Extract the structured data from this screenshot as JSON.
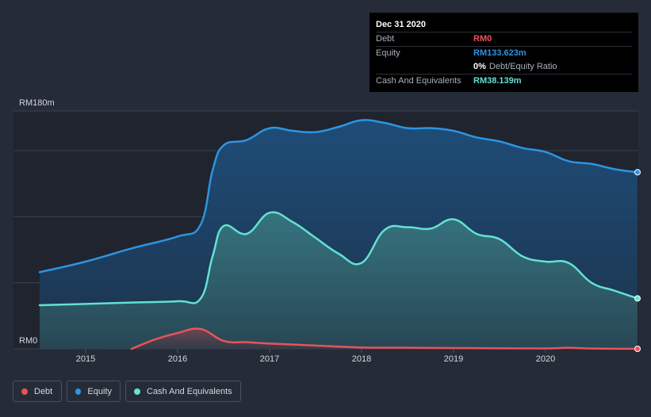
{
  "tooltip": {
    "date": "Dec 31 2020",
    "rows": [
      {
        "label": "Debt",
        "value": "RM0"
      },
      {
        "label": "Equity",
        "value": "RM133.623m"
      },
      {
        "label": "",
        "value": "0%",
        "suffix": "Debt/Equity Ratio"
      },
      {
        "label": "Cash And Equivalents",
        "value": "RM38.139m"
      }
    ]
  },
  "legend": {
    "items": [
      {
        "label": "Debt"
      },
      {
        "label": "Equity"
      },
      {
        "label": "Cash And Equivalents"
      }
    ]
  },
  "colors": {
    "debt": "#e8535a",
    "equity": "#2d94e2",
    "cash": "#63e1d3",
    "background": "#252b37",
    "grid": "#3a4150",
    "axis_text": "#d4d8df"
  },
  "chart_data": {
    "type": "area",
    "title": "",
    "xlabel": "",
    "ylabel": "",
    "y_top_label": "RM180m",
    "y_bottom_label": "RM0",
    "ylim": [
      0,
      180
    ],
    "xlim": [
      2014.5,
      2021.0
    ],
    "x_ticks": [
      2015,
      2016,
      2017,
      2018,
      2019,
      2020
    ],
    "x_tick_labels": [
      "2015",
      "2016",
      "2017",
      "2018",
      "2019",
      "2020"
    ],
    "gridlines": [
      0,
      50,
      100,
      150,
      180
    ],
    "series": [
      {
        "name": "Equity",
        "key": "equity",
        "points": [
          [
            2014.5,
            58
          ],
          [
            2015.0,
            66
          ],
          [
            2015.5,
            76
          ],
          [
            2016.0,
            85
          ],
          [
            2016.25,
            94
          ],
          [
            2016.38,
            135
          ],
          [
            2016.5,
            154
          ],
          [
            2016.75,
            158
          ],
          [
            2017.0,
            167
          ],
          [
            2017.25,
            165
          ],
          [
            2017.5,
            164
          ],
          [
            2017.75,
            168
          ],
          [
            2018.0,
            173
          ],
          [
            2018.25,
            171
          ],
          [
            2018.5,
            167
          ],
          [
            2018.75,
            167
          ],
          [
            2019.0,
            165
          ],
          [
            2019.25,
            160
          ],
          [
            2019.5,
            157
          ],
          [
            2019.75,
            152
          ],
          [
            2020.0,
            149
          ],
          [
            2020.25,
            142
          ],
          [
            2020.5,
            140
          ],
          [
            2020.75,
            136
          ],
          [
            2021.0,
            133.623
          ]
        ]
      },
      {
        "name": "Cash And Equivalents",
        "key": "cash",
        "points": [
          [
            2014.5,
            33
          ],
          [
            2015.0,
            34
          ],
          [
            2015.5,
            35
          ],
          [
            2016.0,
            36
          ],
          [
            2016.25,
            38
          ],
          [
            2016.38,
            70
          ],
          [
            2016.5,
            93
          ],
          [
            2016.75,
            87
          ],
          [
            2017.0,
            103
          ],
          [
            2017.25,
            96
          ],
          [
            2017.5,
            84
          ],
          [
            2017.75,
            72
          ],
          [
            2018.0,
            65
          ],
          [
            2018.25,
            90
          ],
          [
            2018.5,
            92
          ],
          [
            2018.75,
            91
          ],
          [
            2019.0,
            98
          ],
          [
            2019.25,
            87
          ],
          [
            2019.5,
            83
          ],
          [
            2019.75,
            70
          ],
          [
            2020.0,
            66
          ],
          [
            2020.25,
            65
          ],
          [
            2020.5,
            50
          ],
          [
            2020.75,
            44
          ],
          [
            2021.0,
            38.139
          ]
        ]
      },
      {
        "name": "Debt",
        "key": "debt",
        "points": [
          [
            2015.5,
            0
          ],
          [
            2015.75,
            7
          ],
          [
            2016.0,
            12
          ],
          [
            2016.25,
            15
          ],
          [
            2016.5,
            6
          ],
          [
            2016.75,
            5
          ],
          [
            2017.0,
            4
          ],
          [
            2017.5,
            2.5
          ],
          [
            2018.0,
            1
          ],
          [
            2018.5,
            0.8
          ],
          [
            2019.0,
            0.6
          ],
          [
            2019.5,
            0.4
          ],
          [
            2020.0,
            0.3
          ],
          [
            2020.25,
            0.8
          ],
          [
            2020.5,
            0.2
          ],
          [
            2021.0,
            0
          ]
        ]
      }
    ]
  }
}
